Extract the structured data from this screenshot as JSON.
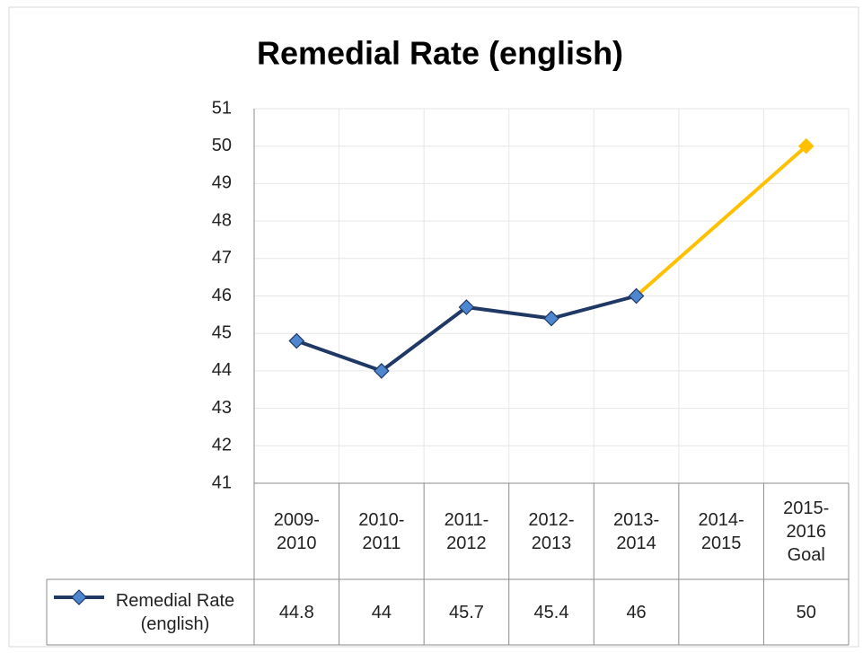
{
  "chart_data": {
    "type": "line",
    "title": "Remedial Rate (english)",
    "categories": [
      "2009-2010",
      "2010-2011",
      "2011-2012",
      "2012-2013",
      "2013-2014",
      "2014-2015",
      "2015-2016 Goal"
    ],
    "series": [
      {
        "name": "Remedial Rate (english)",
        "color": "#1F3864",
        "marker_color": "#4F86D0",
        "goal_color": "#FFC000",
        "values": [
          44.8,
          44,
          45.7,
          45.4,
          46,
          null,
          50
        ]
      }
    ],
    "ylim": [
      41,
      51
    ],
    "yticks": [
      41,
      42,
      43,
      44,
      45,
      46,
      47,
      48,
      49,
      50,
      51
    ],
    "grid": true,
    "data_table": true
  }
}
